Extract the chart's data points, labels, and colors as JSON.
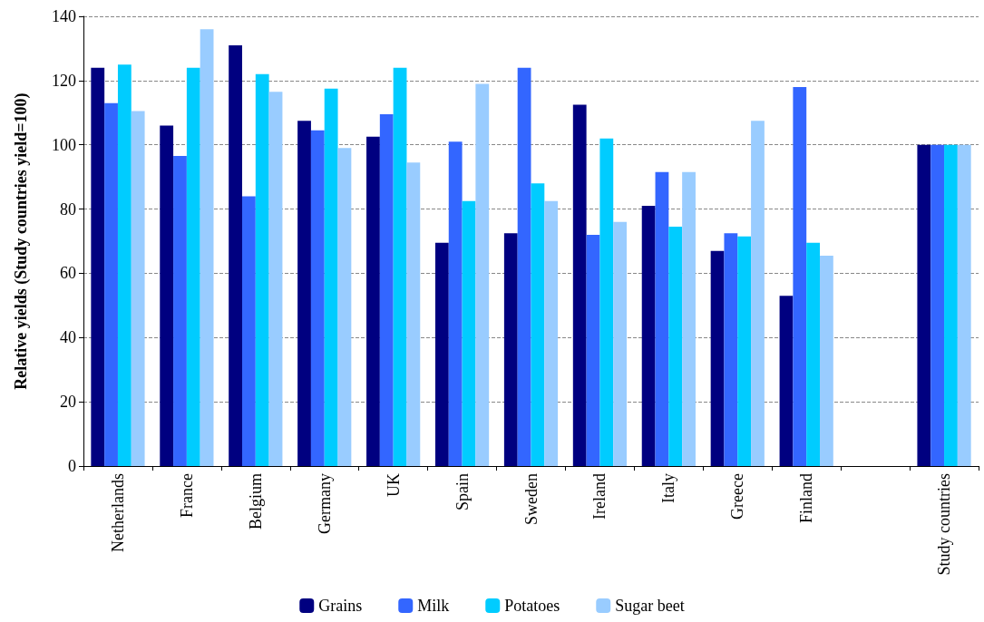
{
  "chart_data": {
    "type": "bar",
    "ylabel": "Relative yields (Study countries yield=100)",
    "categories": [
      "Netherlands",
      "France",
      "Belgium",
      "Germany",
      "UK",
      "Spain",
      "Sweden",
      "Ireland",
      "Italy",
      "Greece",
      "Finland",
      null,
      "Study countries"
    ],
    "series": [
      {
        "name": "Grains",
        "color": "#000080",
        "values": [
          124,
          106,
          131,
          107.5,
          102.5,
          69.5,
          72.5,
          112.5,
          81,
          67,
          53,
          null,
          100
        ]
      },
      {
        "name": "Milk",
        "color": "#3366ff",
        "values": [
          113,
          96.5,
          84,
          104.5,
          109.5,
          101,
          124,
          72,
          91.5,
          72.5,
          118,
          null,
          100
        ]
      },
      {
        "name": "Potatoes",
        "color": "#00ccff",
        "values": [
          125,
          124,
          122,
          117.5,
          124,
          82.5,
          88,
          102,
          74.5,
          71.5,
          69.5,
          null,
          100
        ]
      },
      {
        "name": "Sugar beet",
        "color": "#99ccff",
        "values": [
          110.5,
          136,
          116.5,
          99,
          94.5,
          119,
          82.5,
          76,
          91.5,
          107.5,
          65.5,
          null,
          100
        ]
      }
    ],
    "ylim": [
      0,
      140
    ],
    "yticks": [
      0,
      20,
      40,
      60,
      80,
      100,
      120,
      140
    ],
    "grid": "y",
    "legend": "bottom"
  }
}
